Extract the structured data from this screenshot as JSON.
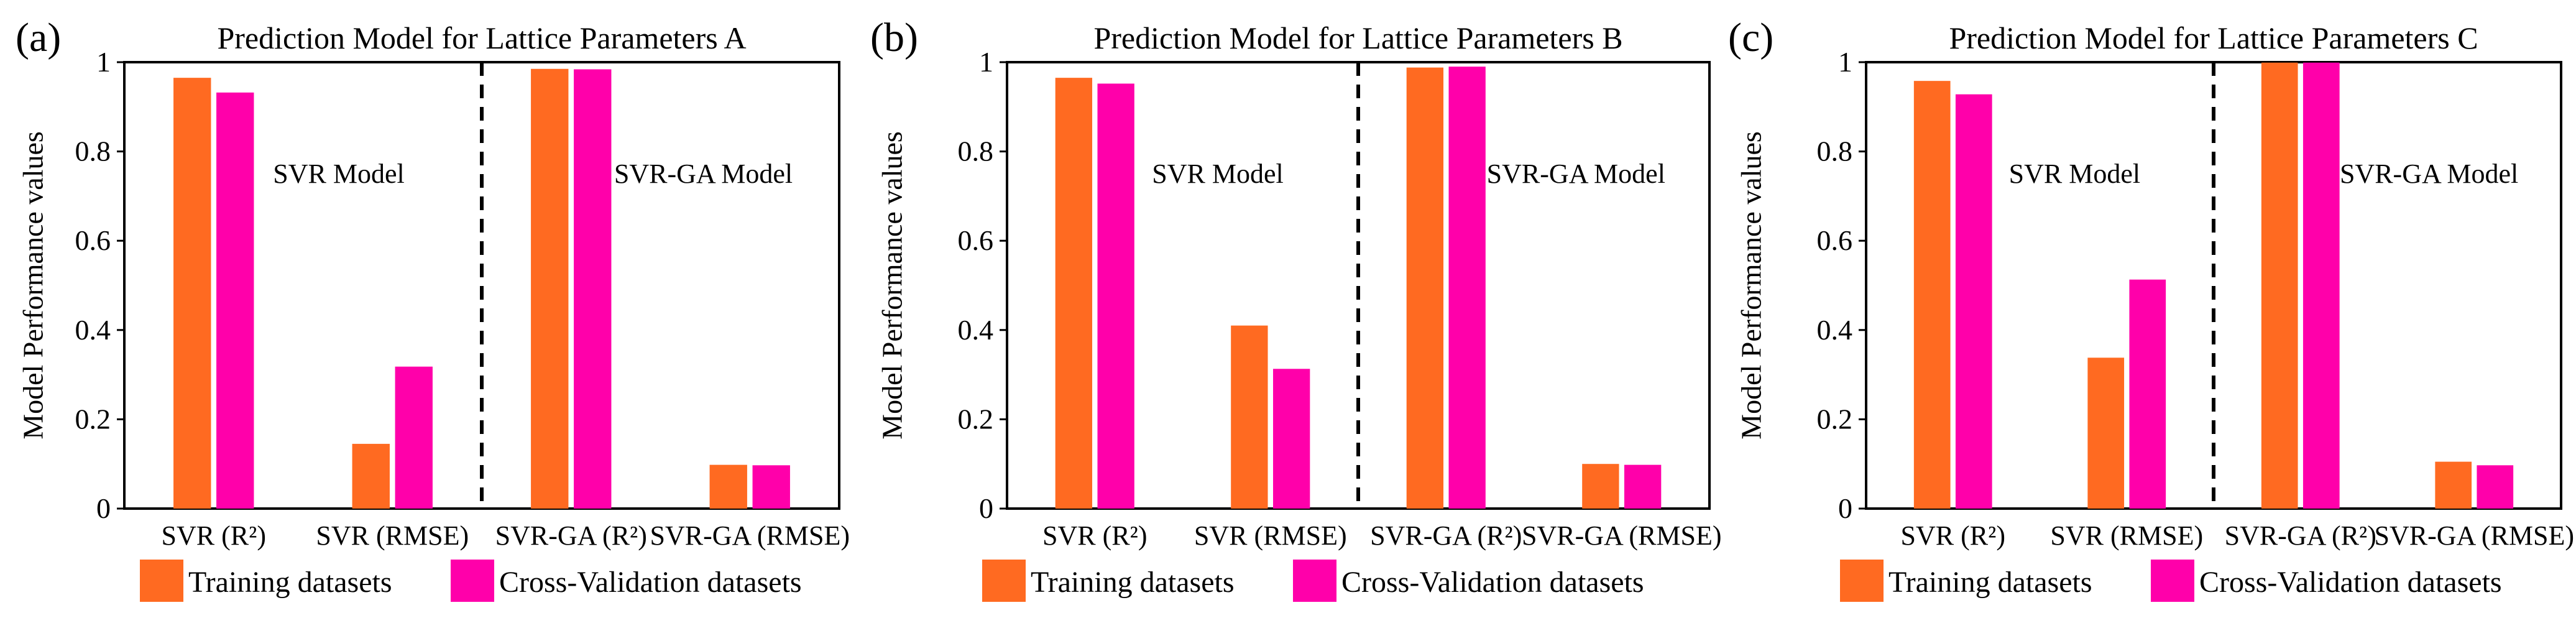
{
  "legend": {
    "training": "Training datasets",
    "cross_validation": "Cross-Validation datasets"
  },
  "colors": {
    "training": "#FF6A21",
    "cross_validation": "#FF00AA",
    "axis": "#000000"
  },
  "chart_data": [
    {
      "type": "bar",
      "panel": "(a)",
      "title": "Prediction Model for Lattice Parameters A",
      "ylabel": "Model Performance values",
      "xlabel": "",
      "ylim": [
        0,
        1
      ],
      "yticks": [
        "0",
        "0.2",
        "0.4",
        "0.6",
        "0.8",
        "1"
      ],
      "categories": [
        "SVR (R²)",
        "SVR (RMSE)",
        "SVR-GA (R²)",
        "SVR-GA (RMSE)"
      ],
      "series": [
        {
          "name": "Training datasets",
          "values": [
            0.965,
            0.145,
            0.985,
            0.098
          ]
        },
        {
          "name": "Cross-Validation datasets",
          "values": [
            0.932,
            0.318,
            0.984,
            0.097
          ]
        }
      ],
      "annotations": [
        "SVR Model",
        "SVR-GA Model"
      ],
      "divider": "dashed line between SVR and SVR-GA groups"
    },
    {
      "type": "bar",
      "panel": "(b)",
      "title": "Prediction Model for Lattice Parameters B",
      "ylabel": "Model Performance values",
      "xlabel": "",
      "ylim": [
        0,
        1
      ],
      "yticks": [
        "0",
        "0.2",
        "0.4",
        "0.6",
        "0.8",
        "1"
      ],
      "categories": [
        "SVR (R²)",
        "SVR (RMSE)",
        "SVR-GA (R²)",
        "SVR-GA (RMSE)"
      ],
      "series": [
        {
          "name": "Training datasets",
          "values": [
            0.965,
            0.41,
            0.988,
            0.1
          ]
        },
        {
          "name": "Cross-Validation datasets",
          "values": [
            0.952,
            0.313,
            0.99,
            0.098
          ]
        }
      ],
      "annotations": [
        "SVR Model",
        "SVR-GA Model"
      ],
      "divider": "dashed line between SVR and SVR-GA groups"
    },
    {
      "type": "bar",
      "panel": "(c)",
      "title": "Prediction Model for Lattice Parameters C",
      "ylabel": "Model Performance values",
      "xlabel": "",
      "ylim": [
        0,
        1
      ],
      "yticks": [
        "0",
        "0.2",
        "0.4",
        "0.6",
        "0.8",
        "1"
      ],
      "categories": [
        "SVR (R²)",
        "SVR (RMSE)",
        "SVR-GA (R²)",
        "SVR-GA (RMSE)"
      ],
      "series": [
        {
          "name": "Training datasets",
          "values": [
            0.958,
            0.338,
            0.999,
            0.105
          ]
        },
        {
          "name": "Cross-Validation datasets",
          "values": [
            0.928,
            0.513,
            0.999,
            0.097
          ]
        }
      ],
      "annotations": [
        "SVR Model",
        "SVR-GA Model"
      ],
      "divider": "dashed line between SVR and SVR-GA groups"
    }
  ]
}
